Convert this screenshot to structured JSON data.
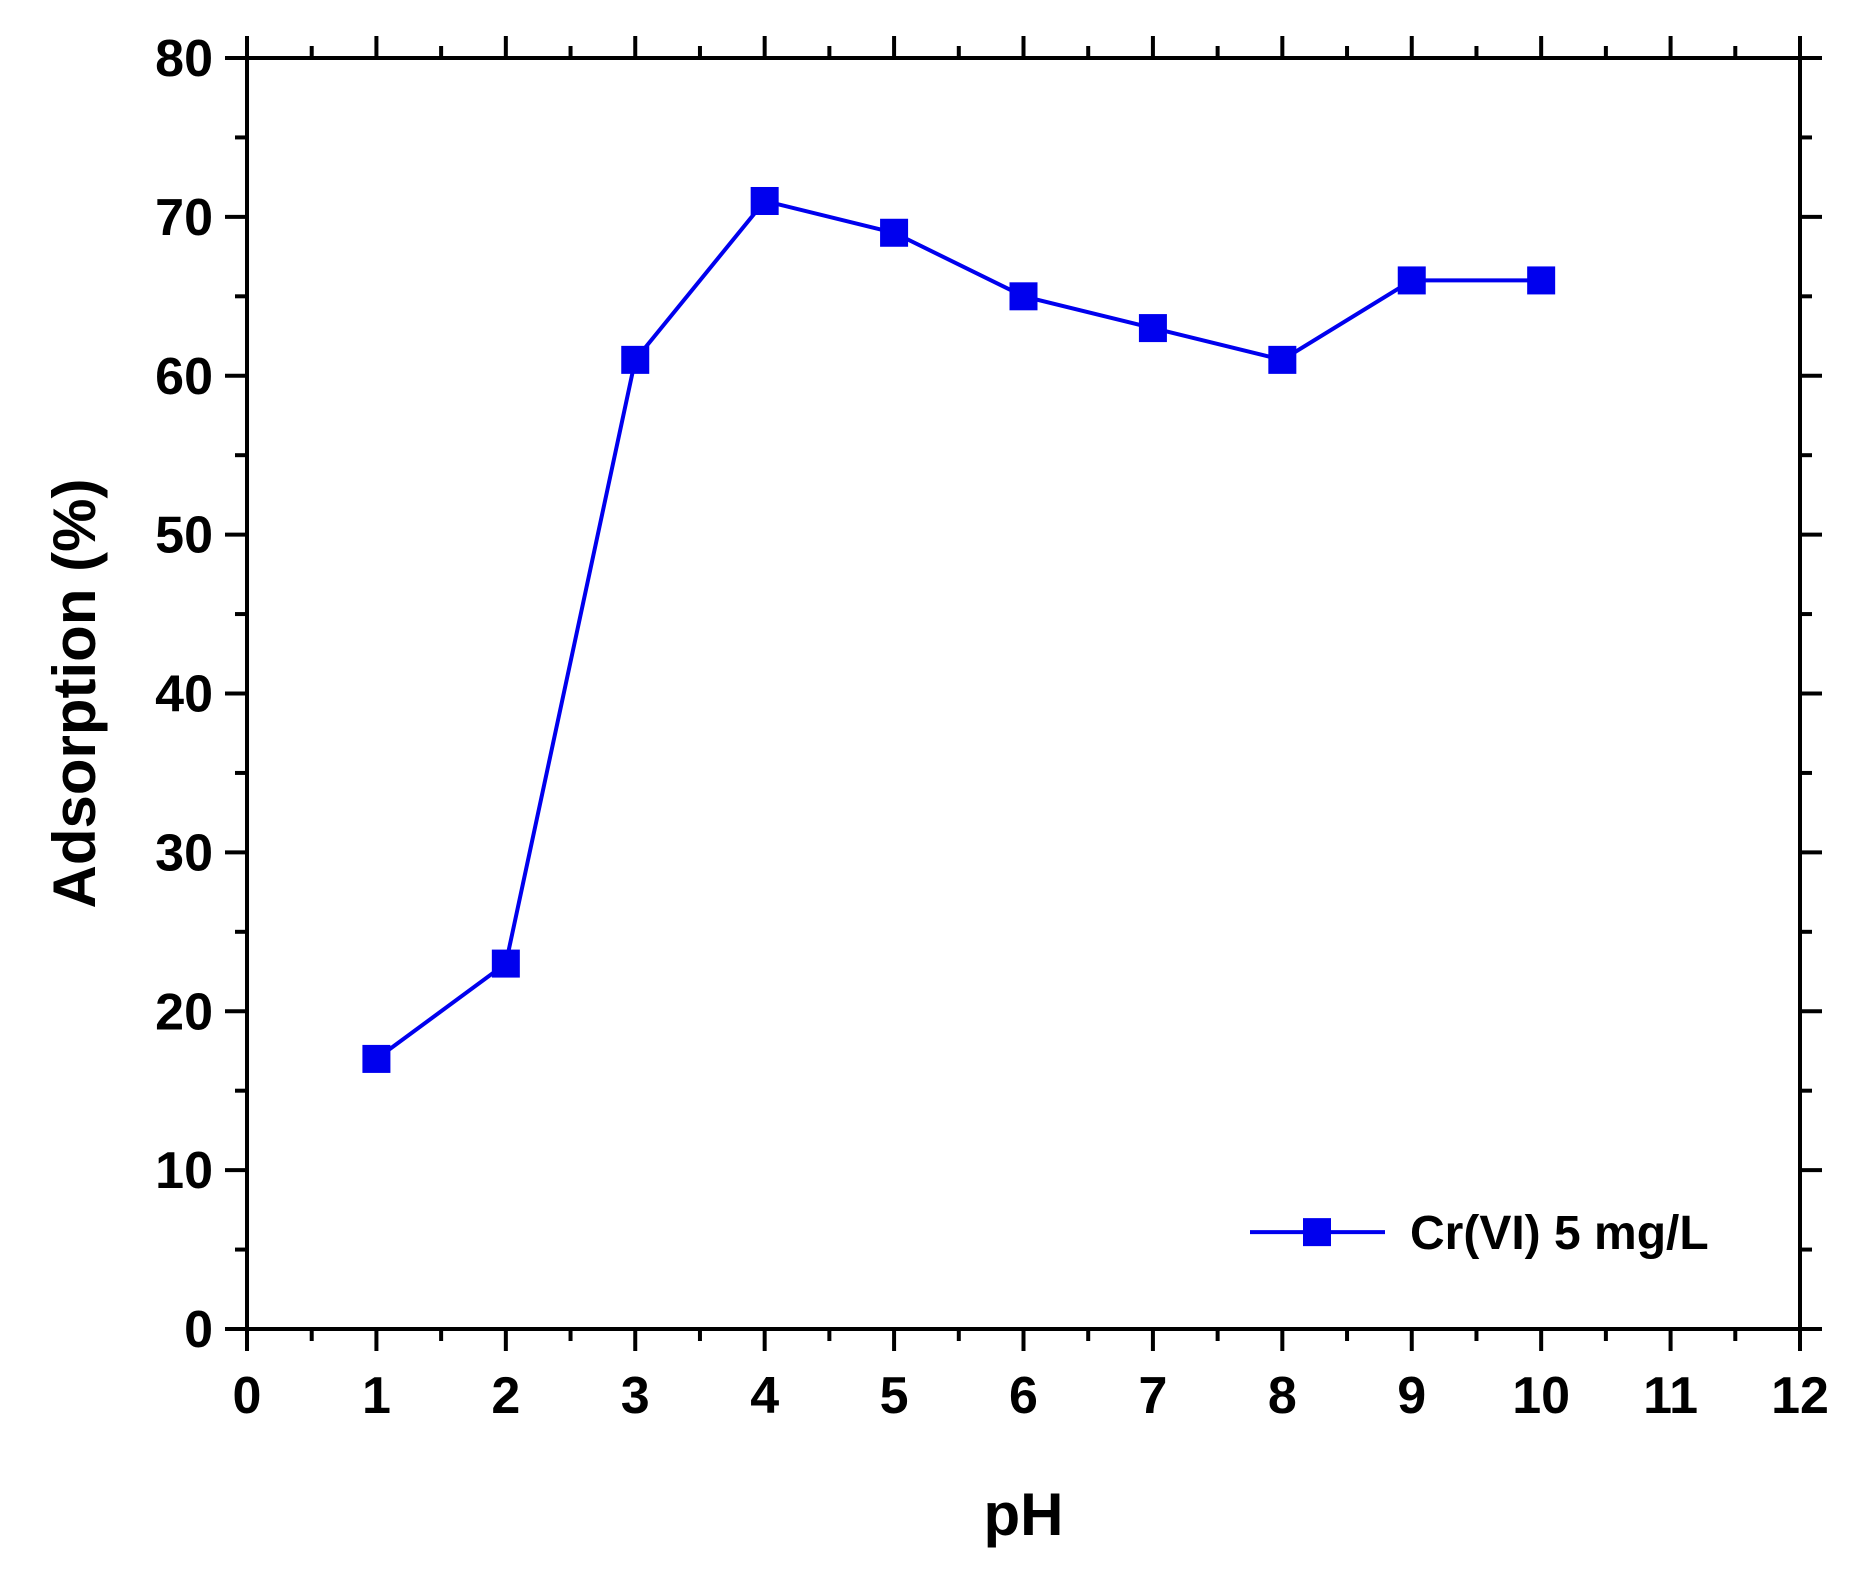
{
  "chart_data": {
    "type": "line",
    "title": "",
    "xlabel": "pH",
    "ylabel": "Adsorption (%)",
    "xlim": [
      0,
      12
    ],
    "ylim": [
      0,
      80
    ],
    "x_ticks": [
      0,
      1,
      2,
      3,
      4,
      5,
      6,
      7,
      8,
      9,
      10,
      11,
      12
    ],
    "y_ticks": [
      0,
      10,
      20,
      30,
      40,
      50,
      60,
      70,
      80
    ],
    "grid": false,
    "legend_position": "bottom-right",
    "series": [
      {
        "name": "Cr(VI) 5 mg/L",
        "color": "#0000ee",
        "marker": "square",
        "x": [
          1,
          2,
          3,
          4,
          5,
          6,
          7,
          8,
          9,
          10
        ],
        "y": [
          17,
          23,
          61,
          71,
          69,
          65,
          63,
          61,
          66,
          66
        ]
      }
    ]
  }
}
